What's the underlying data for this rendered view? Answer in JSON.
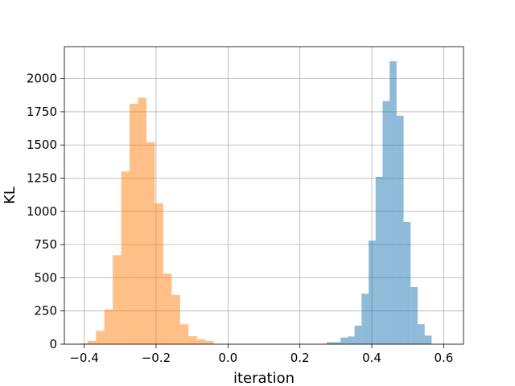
{
  "chart_data": {
    "type": "bar",
    "title": "",
    "xlabel": "iteration",
    "ylabel": "KL",
    "xlim": [
      -0.455,
      0.655
    ],
    "ylim": [
      0,
      2240
    ],
    "grid": true,
    "legend": "none",
    "x_ticks": [
      -0.4,
      -0.2,
      0.0,
      0.2,
      0.4,
      0.6
    ],
    "x_tick_labels": [
      "−0.4",
      "−0.2",
      "0.0",
      "0.2",
      "0.4",
      "0.6"
    ],
    "y_ticks": [
      0,
      250,
      500,
      750,
      1000,
      1250,
      1500,
      1750,
      2000
    ],
    "y_tick_labels": [
      "0",
      "250",
      "500",
      "750",
      "1000",
      "1250",
      "1500",
      "1750",
      "2000"
    ],
    "series": [
      {
        "color": "#1f77b4",
        "opacity": 0.5,
        "bin_start": 0.274,
        "bin_width": 0.0195,
        "counts": [
          15,
          15,
          50,
          58,
          140,
          380,
          780,
          1260,
          1830,
          2130,
          1720,
          920,
          430,
          150,
          65,
          0,
          0
        ]
      },
      {
        "color": "#ff7f0e",
        "opacity": 0.5,
        "bin_start": -0.414,
        "bin_width": 0.0234,
        "counts": [
          5,
          25,
          100,
          260,
          670,
          1300,
          1810,
          1855,
          1520,
          1060,
          530,
          370,
          150,
          60,
          38,
          25,
          0,
          0
        ]
      }
    ]
  }
}
